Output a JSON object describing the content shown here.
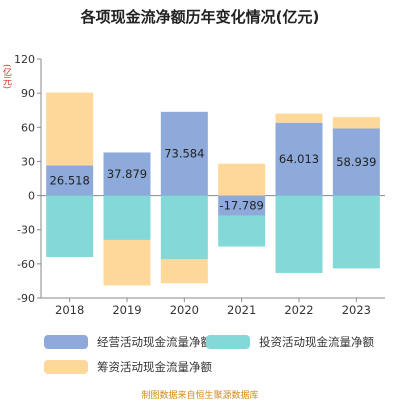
{
  "title": "各项现金流净额历年变化情况(亿元)",
  "unit_label": "(亿元)",
  "source": "制图数据来自恒生聚源数据库",
  "colors": {
    "operating": "#8eaadb",
    "investing": "#84d8d8",
    "financing": "#fdd89a"
  },
  "chart_data": {
    "type": "bar",
    "stacked": true,
    "title": "各项现金流净额历年变化情况(亿元)",
    "ylabel": "(亿元)",
    "categories": [
      "2018",
      "2019",
      "2020",
      "2021",
      "2022",
      "2023"
    ],
    "ylim": [
      -90,
      120
    ],
    "yticks": [
      -90,
      -60,
      -30,
      0,
      30,
      60,
      90,
      120
    ],
    "grid": false,
    "legend_position": "bottom",
    "series": [
      {
        "name": "经营活动现金流量净额",
        "values": [
          26.518,
          37.879,
          73.584,
          -17.789,
          64.013,
          58.939
        ],
        "labels": [
          "26.518",
          "37.879",
          "73.584",
          "-17.789",
          "64.013",
          "58.939"
        ]
      },
      {
        "name": "投资活动现金流量净额",
        "values": [
          -54,
          -39,
          -56,
          -27,
          -68,
          -64
        ]
      },
      {
        "name": "筹资活动现金流量净额",
        "values": [
          64,
          -40,
          -21,
          28,
          8,
          10
        ]
      }
    ]
  }
}
